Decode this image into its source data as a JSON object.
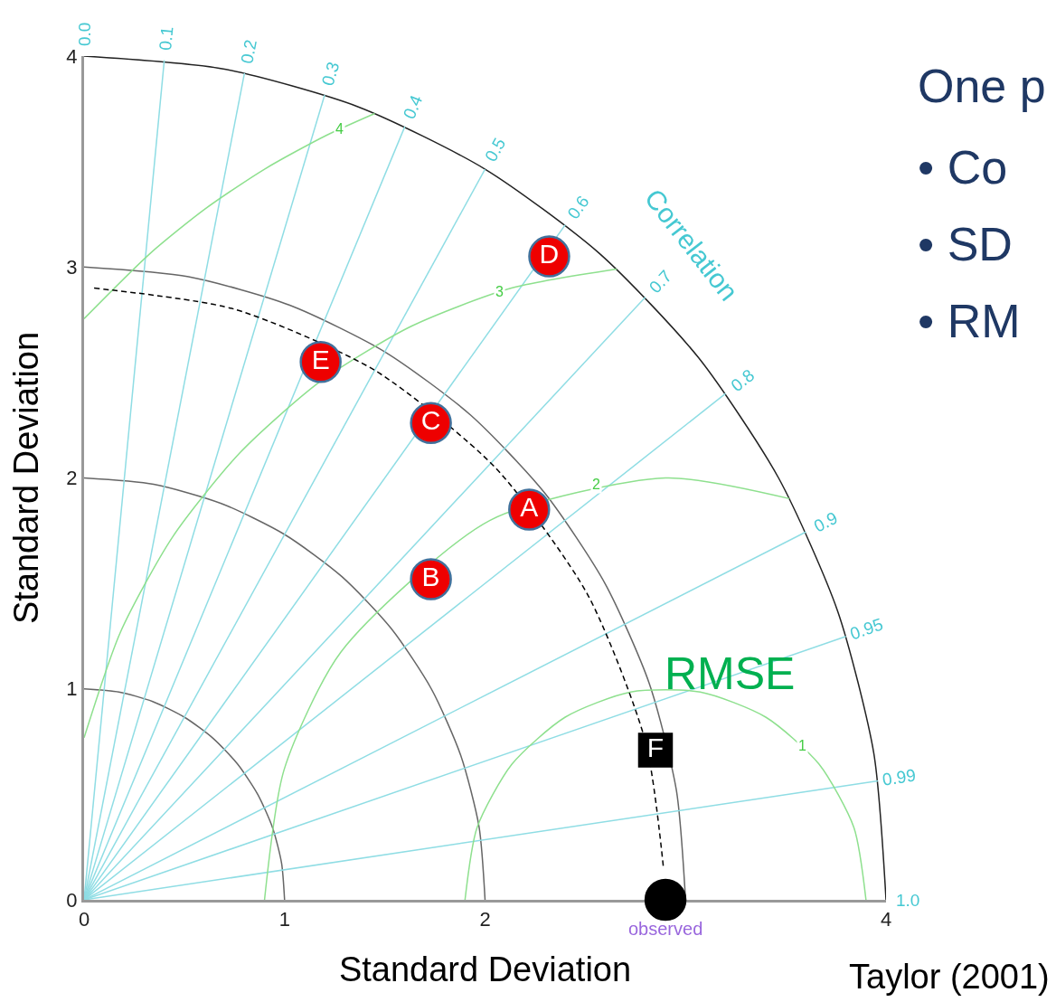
{
  "chart_data": {
    "type": "scatter",
    "xlabel": "Standard Deviation",
    "ylabel": "Standard Deviation",
    "xlim": [
      0,
      4
    ],
    "ylim": [
      0,
      4
    ],
    "xticks": [
      0,
      1,
      2,
      4
    ],
    "yticks": [
      0,
      1,
      2,
      3,
      4
    ],
    "series": [
      {
        "type": "line",
        "color": "#666666",
        "x": [
          1,
          0.985,
          0.94,
          0.866,
          0.766,
          0.643,
          0.5,
          0.342,
          0.174,
          0
        ],
        "values": [
          0,
          0.174,
          0.342,
          0.5,
          0.643,
          0.766,
          0.866,
          0.94,
          0.985,
          1
        ]
      },
      {
        "type": "line",
        "color": "#666666",
        "x": [
          2,
          1.97,
          1.879,
          1.732,
          1.532,
          1.286,
          1,
          0.684,
          0.347,
          0
        ],
        "values": [
          0,
          0.347,
          0.684,
          1,
          1.286,
          1.532,
          1.732,
          1.879,
          1.97,
          2
        ]
      },
      {
        "type": "line",
        "color": "#666666",
        "x": [
          3,
          2.954,
          2.819,
          2.598,
          2.298,
          1.928,
          1.5,
          1.026,
          0.521,
          0
        ],
        "values": [
          0,
          0.521,
          1.026,
          1.5,
          1.928,
          2.298,
          2.598,
          2.819,
          2.954,
          3
        ]
      },
      {
        "type": "line",
        "color": "#222222",
        "x": [
          4,
          3.939,
          3.759,
          3.464,
          3.064,
          2.571,
          2,
          1.368,
          0.695,
          0
        ],
        "values": [
          0,
          0.695,
          1.368,
          2,
          2.571,
          3.064,
          3.464,
          3.759,
          3.939,
          4
        ]
      },
      {
        "type": "line",
        "color": "#8fdde4",
        "x": [
          0,
          0.4
        ],
        "values": [
          0,
          3.98
        ]
      },
      {
        "type": "line",
        "color": "#8fdde4",
        "x": [
          0,
          0.8
        ],
        "values": [
          0,
          3.919
        ]
      },
      {
        "type": "line",
        "color": "#8fdde4",
        "x": [
          0,
          1.2
        ],
        "values": [
          0,
          3.816
        ]
      },
      {
        "type": "line",
        "color": "#8fdde4",
        "x": [
          0,
          1.6
        ],
        "values": [
          0,
          3.666
        ]
      },
      {
        "type": "line",
        "color": "#8fdde4",
        "x": [
          0,
          2.0
        ],
        "values": [
          0,
          3.464
        ]
      },
      {
        "type": "line",
        "color": "#8fdde4",
        "x": [
          0,
          2.4
        ],
        "values": [
          0,
          3.2
        ]
      },
      {
        "type": "line",
        "color": "#8fdde4",
        "x": [
          0,
          2.8
        ],
        "values": [
          0,
          2.857
        ]
      },
      {
        "type": "line",
        "color": "#8fdde4",
        "x": [
          0,
          3.2
        ],
        "values": [
          0,
          2.4
        ]
      },
      {
        "type": "line",
        "color": "#8fdde4",
        "x": [
          0,
          3.6
        ],
        "values": [
          0,
          1.744
        ]
      },
      {
        "type": "line",
        "color": "#8fdde4",
        "x": [
          0,
          3.8
        ],
        "values": [
          0,
          1.249
        ]
      },
      {
        "type": "line",
        "color": "#8fdde4",
        "x": [
          0,
          3.96
        ],
        "values": [
          0,
          0.564
        ]
      },
      {
        "type": "line",
        "color": "#8ee08e",
        "x": [
          3.9,
          3.84,
          3.666,
          3.4,
          3.074,
          2.726,
          2.4,
          2.134,
          1.96,
          1.9
        ],
        "values": [
          0,
          0.342,
          0.643,
          0.866,
          0.985,
          0.985,
          0.866,
          0.643,
          0.342,
          0
        ]
      },
      {
        "type": "line",
        "color": "#8ee08e",
        "x": [
          3.518,
          2.9,
          2.023,
          1.282,
          0.998,
          0.9
        ],
        "values": [
          1.902,
          2,
          1.798,
          1.176,
          0.618,
          0
        ]
      },
      {
        "type": "line",
        "color": "#8ee08e",
        "x": [
          2.657,
          2.124,
          1.632,
          1.179,
          0.779,
          0.442,
          0.181,
          0
        ],
        "values": [
          2.99,
          2.898,
          2.719,
          2.458,
          2.121,
          1.721,
          1.268,
          0.768
        ]
      },
      {
        "type": "line",
        "color": "#8ee08e",
        "x": [
          1.45,
          1.21,
          0.9,
          0.606,
          0.329,
          0
        ],
        "values": [
          3.728,
          3.625,
          3.464,
          3.277,
          3.064,
          2.755
        ]
      },
      {
        "type": "line",
        "color": "#000000",
        "line_style": "dashed",
        "x": [
          0.05,
          0.75,
          1.45,
          2.05,
          2.51,
          2.8,
          2.89
        ],
        "values": [
          2.9,
          2.8,
          2.51,
          2.05,
          1.45,
          0.75,
          0.15
        ]
      },
      {
        "name": "A",
        "color": "#ee0000",
        "marker": "circle",
        "x": [
          2.22
        ],
        "values": [
          1.85
        ]
      },
      {
        "name": "B",
        "color": "#ee0000",
        "marker": "circle",
        "x": [
          1.73
        ],
        "values": [
          1.52
        ]
      },
      {
        "name": "C",
        "color": "#ee0000",
        "marker": "circle",
        "x": [
          1.73
        ],
        "values": [
          2.26
        ]
      },
      {
        "name": "D",
        "color": "#ee0000",
        "marker": "circle",
        "x": [
          2.32
        ],
        "values": [
          3.05
        ]
      },
      {
        "name": "E",
        "color": "#ee0000",
        "marker": "circle",
        "x": [
          1.18
        ],
        "values": [
          2.55
        ]
      },
      {
        "name": "F",
        "color": "#000000",
        "marker": "square",
        "x": [
          2.85
        ],
        "values": [
          0.71
        ]
      },
      {
        "color": "#000000",
        "marker": "circle",
        "x": [
          2.9
        ],
        "values": [
          0
        ]
      }
    ],
    "annotations": [
      {
        "text": "observed",
        "x": 2.9,
        "y": 0
      },
      {
        "text": "0.0",
        "x": 0,
        "y": 4
      },
      {
        "text": "0.1",
        "x": 0.4,
        "y": 3.98
      },
      {
        "text": "0.2",
        "x": 0.8,
        "y": 3.919
      },
      {
        "text": "0.3",
        "x": 1.2,
        "y": 3.816
      },
      {
        "text": "0.4",
        "x": 1.6,
        "y": 3.666
      },
      {
        "text": "0.5",
        "x": 2.0,
        "y": 3.464
      },
      {
        "text": "0.6",
        "x": 2.4,
        "y": 3.2
      },
      {
        "text": "0.7",
        "x": 2.8,
        "y": 2.857
      },
      {
        "text": "0.8",
        "x": 3.2,
        "y": 2.4
      },
      {
        "text": "0.9",
        "x": 3.6,
        "y": 1.744
      },
      {
        "text": "0.95",
        "x": 3.8,
        "y": 1.249
      },
      {
        "text": "0.99",
        "x": 3.96,
        "y": 0.564
      },
      {
        "text": "1.0",
        "x": 4,
        "y": 0
      },
      {
        "text": "1",
        "x": 3.582,
        "y": 0.731
      },
      {
        "text": "2",
        "x": 2.553,
        "y": 1.97
      },
      {
        "text": "3",
        "x": 2.073,
        "y": 2.884
      },
      {
        "text": "4",
        "x": 1.273,
        "y": 3.654
      },
      "Correlation",
      "RMSE",
      "Taylor (2001)",
      "One p",
      "• Co",
      "• SD",
      "• RM"
    ]
  }
}
